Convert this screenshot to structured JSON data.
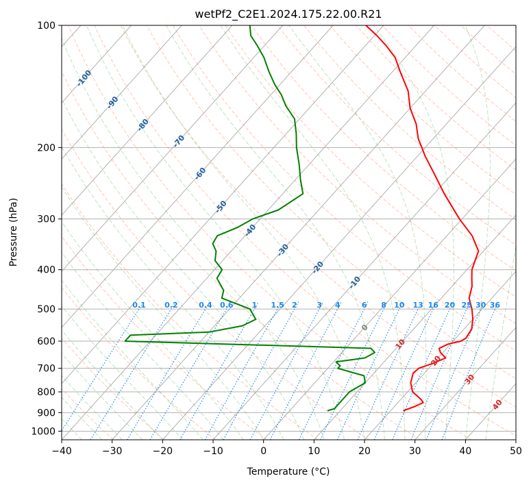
{
  "chart_data": {
    "type": "line",
    "title": "wetPf2_C2E1.2024.175.22.00.R21",
    "xlabel": "Temperature (°C)",
    "ylabel": "Pressure (hPa)",
    "xlim": [
      -40,
      50
    ],
    "ylim": [
      1050,
      100
    ],
    "y_scale": "log",
    "skew": "skew-T log-p",
    "grid": true,
    "x_ticks": [
      -40,
      -30,
      -20,
      -10,
      0,
      10,
      20,
      30,
      40,
      50
    ],
    "y_ticks": [
      100,
      200,
      300,
      400,
      500,
      600,
      700,
      800,
      900,
      1000
    ],
    "series": [
      {
        "color": "#ff0000",
        "role": "temperature",
        "points": [
          [
            22.5,
            890
          ],
          [
            24.0,
            870
          ],
          [
            25.0,
            850
          ],
          [
            24.0,
            835
          ],
          [
            21.0,
            800
          ],
          [
            19.0,
            760
          ],
          [
            17.8,
            720
          ],
          [
            18.0,
            700
          ],
          [
            20.0,
            680
          ],
          [
            21.5,
            660
          ],
          [
            19.5,
            640
          ],
          [
            18.5,
            625
          ],
          [
            19.5,
            610
          ],
          [
            21.5,
            600
          ],
          [
            22.0,
            590
          ],
          [
            21.5,
            560
          ],
          [
            20.0,
            530
          ],
          [
            18.0,
            500
          ],
          [
            15.5,
            470
          ],
          [
            14.0,
            440
          ],
          [
            12.5,
            420
          ],
          [
            11.0,
            400
          ],
          [
            10.0,
            380
          ],
          [
            9.0,
            360
          ],
          [
            5.0,
            330
          ],
          [
            -0.5,
            300
          ],
          [
            -8.0,
            260
          ],
          [
            -14.0,
            230
          ],
          [
            -18.5,
            210
          ],
          [
            -23.0,
            190
          ],
          [
            -26.0,
            175
          ],
          [
            -30.0,
            160
          ],
          [
            -33.5,
            145
          ],
          [
            -38.5,
            130
          ],
          [
            -42.0,
            120
          ],
          [
            -46.0,
            112
          ],
          [
            -49.5,
            106
          ],
          [
            -53.5,
            100
          ]
        ]
      },
      {
        "color": "#008000",
        "role": "dewpoint",
        "points": [
          [
            7.5,
            890
          ],
          [
            8.5,
            880
          ],
          [
            8.5,
            850
          ],
          [
            8.5,
            830
          ],
          [
            8.5,
            800
          ],
          [
            10.0,
            760
          ],
          [
            8.5,
            730
          ],
          [
            2.0,
            700
          ],
          [
            2.0,
            690
          ],
          [
            0.5,
            675
          ],
          [
            5.5,
            660
          ],
          [
            6.5,
            640
          ],
          [
            5.0,
            625
          ],
          [
            -45.0,
            600
          ],
          [
            -45.0,
            580
          ],
          [
            -30.0,
            570
          ],
          [
            -24.5,
            550
          ],
          [
            -23.0,
            530
          ],
          [
            -26.0,
            500
          ],
          [
            -33.5,
            470
          ],
          [
            -34.5,
            450
          ],
          [
            -38.0,
            420
          ],
          [
            -38.5,
            400
          ],
          [
            -41.5,
            380
          ],
          [
            -43.0,
            360
          ],
          [
            -45.0,
            345
          ],
          [
            -45.5,
            330
          ],
          [
            -43.0,
            315
          ],
          [
            -41.5,
            300
          ],
          [
            -38.0,
            285
          ],
          [
            -36.0,
            260
          ],
          [
            -39.0,
            240
          ],
          [
            -42.0,
            220
          ],
          [
            -45.5,
            200
          ],
          [
            -48.0,
            185
          ],
          [
            -51.0,
            170
          ],
          [
            -55.0,
            158
          ],
          [
            -58.0,
            148
          ],
          [
            -61.0,
            140
          ],
          [
            -64.5,
            130
          ],
          [
            -68.0,
            120
          ],
          [
            -71.5,
            112
          ],
          [
            -74.5,
            106
          ],
          [
            -76.5,
            100
          ]
        ]
      }
    ],
    "isotherm_labels": [
      "-100",
      "-90",
      "-80",
      "-70",
      "-60",
      "-50",
      "-40",
      "-30",
      "-20",
      "-10",
      "0",
      "10",
      "20",
      "30",
      "40"
    ],
    "mixing_ratio_labels": [
      "0.1",
      "0.2",
      "0.4",
      "0.6",
      "1",
      "1.5",
      "2",
      "3",
      "4",
      "6",
      "8",
      "10",
      "13",
      "16",
      "20",
      "25",
      "30",
      "36"
    ],
    "mixing_ratio_values": [
      0.1,
      0.2,
      0.4,
      0.6,
      1,
      1.5,
      2,
      3,
      4,
      6,
      8,
      10,
      13,
      16,
      20,
      25,
      30,
      36
    ]
  },
  "colors": {
    "isotherm_label_cold": "#1f5f9e",
    "isotherm_label_zero": "#808080",
    "isotherm_label_warm": "#d62728",
    "mixing_ratio": "#1e88e5",
    "dry_adiabat": "#ff7f50",
    "moist_adiabat": "#2ca02c",
    "grid": "#b0b0b0"
  }
}
